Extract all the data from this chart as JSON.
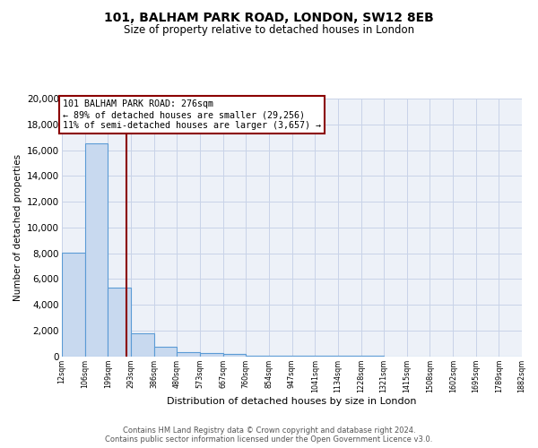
{
  "title": "101, BALHAM PARK ROAD, LONDON, SW12 8EB",
  "subtitle": "Size of property relative to detached houses in London",
  "xlabel": "Distribution of detached houses by size in London",
  "ylabel": "Number of detached properties",
  "bar_color": "#c8d9ef",
  "bar_edge_color": "#5b9bd5",
  "background_color": "#edf1f8",
  "grid_color": "#c8d3e8",
  "red_line_x": 276,
  "bin_edges": [
    12,
    106,
    199,
    293,
    386,
    480,
    573,
    667,
    760,
    854,
    947,
    1041,
    1134,
    1228,
    1321,
    1415,
    1508,
    1602,
    1695,
    1789,
    1882
  ],
  "bar_heights": [
    8050,
    16500,
    5300,
    1800,
    750,
    290,
    210,
    195,
    10,
    5,
    3,
    2,
    1,
    1,
    0,
    0,
    0,
    0,
    0,
    0
  ],
  "ylim": [
    0,
    20000
  ],
  "yticks": [
    0,
    2000,
    4000,
    6000,
    8000,
    10000,
    12000,
    14000,
    16000,
    18000,
    20000
  ],
  "annotation_title": "101 BALHAM PARK ROAD: 276sqm",
  "annotation_line1": "← 89% of detached houses are smaller (29,256)",
  "annotation_line2": "11% of semi-detached houses are larger (3,657) →",
  "footer1": "Contains HM Land Registry data © Crown copyright and database right 2024.",
  "footer2": "Contains public sector information licensed under the Open Government Licence v3.0."
}
